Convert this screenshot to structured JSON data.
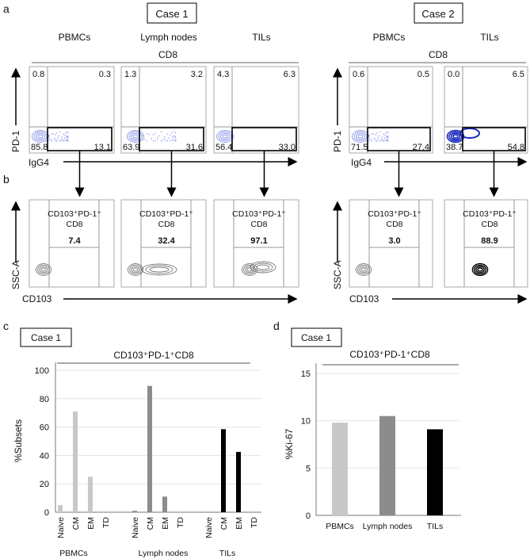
{
  "panel_labels": {
    "a": "a",
    "b": "b",
    "c": "c",
    "d": "d"
  },
  "panel_a": {
    "case1_label": "Case 1",
    "case2_label": "Case 2",
    "parent_gate": "CD8",
    "y_axis": "PD-1",
    "x_axis": "IgG4",
    "plots": [
      {
        "case": 1,
        "tissue": "PBMCs",
        "quadrants": [
          "0.8",
          "0.3",
          "85.8",
          "13.1"
        ],
        "style": "blue"
      },
      {
        "case": 1,
        "tissue": "Lymph nodes",
        "quadrants": [
          "1.3",
          "3.2",
          "63.9",
          "31.6"
        ],
        "style": "blue"
      },
      {
        "case": 1,
        "tissue": "TILs",
        "quadrants": [
          "4.3",
          "6.3",
          "56.4",
          "33.0"
        ],
        "style": "blue"
      },
      {
        "case": 2,
        "tissue": "PBMCs",
        "quadrants": [
          "0.6",
          "0.5",
          "71.5",
          "27.4"
        ],
        "style": "blue"
      },
      {
        "case": 2,
        "tissue": "TILs",
        "quadrants": [
          "0.0",
          "6.5",
          "38.7",
          "54.8"
        ],
        "style": "blue"
      }
    ]
  },
  "panel_b": {
    "y_axis": "SSC-A",
    "x_axis": "CD103",
    "gate_label_line1": "CD103⁺PD-1⁺",
    "gate_label_line2": "CD8",
    "values": [
      "7.4",
      "32.4",
      "97.1",
      "3.0",
      "88.9"
    ]
  },
  "chart_data": [
    {
      "type": "bar",
      "case_label": "Case 1",
      "title": "CD103⁺PD-1⁺CD8",
      "ylabel": "%Subsets",
      "xlabel": "",
      "ylim": [
        0,
        100
      ],
      "yticks": [
        "0",
        "20",
        "40",
        "60",
        "80",
        "100"
      ],
      "grid": true,
      "groups": [
        "PBMCs",
        "Lymph nodes",
        "TILs"
      ],
      "categories": [
        "Naive",
        "CM",
        "EM",
        "TD"
      ],
      "series": [
        {
          "name": "PBMCs",
          "color": "#c8c8c8",
          "values": [
            5,
            71,
            25,
            0
          ]
        },
        {
          "name": "Lymph nodes",
          "color": "#8c8c8c",
          "values": [
            1,
            89,
            11,
            0.3
          ]
        },
        {
          "name": "TILs",
          "color": "#000000",
          "values": [
            0,
            58.5,
            42.5,
            0
          ]
        }
      ]
    },
    {
      "type": "bar",
      "case_label": "Case 1",
      "title": "CD103⁺PD-1⁺CD8",
      "ylabel": "%Ki-67",
      "xlabel": "",
      "ylim": [
        0,
        15
      ],
      "yticks": [
        "0",
        "5",
        "10",
        "15"
      ],
      "grid": true,
      "categories": [
        "PBMCs",
        "Lymph nodes",
        "TILs"
      ],
      "values": [
        9.8,
        10.5,
        9.1
      ],
      "colors": [
        "#c8c8c8",
        "#8c8c8c",
        "#000000"
      ]
    }
  ]
}
